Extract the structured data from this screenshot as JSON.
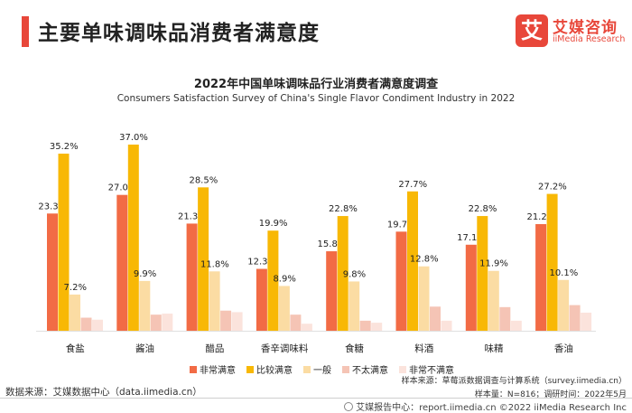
{
  "header": {
    "title": "主要单味调味品消费者满意度"
  },
  "logo": {
    "mark": "艾",
    "name_cn": "艾媒咨询",
    "name_en": "iiMedia Research"
  },
  "chart_data": {
    "type": "bar",
    "title": "2022年中国单味调味品行业消费者满意度调查",
    "subtitle": "Consumers Satisfaction Survey of China's Single Flavor Condiment Industry in 2022",
    "categories": [
      "食盐",
      "酱油",
      "醋品",
      "香辛调味料",
      "食糖",
      "料酒",
      "味精",
      "香油"
    ],
    "series": [
      {
        "name": "非常满意",
        "color": "#f26b45",
        "values": [
          23.3,
          27.0,
          21.3,
          12.3,
          15.8,
          19.7,
          17.1,
          21.2
        ],
        "labels": [
          "23.3%",
          "27.0%",
          "21.3%",
          "12.3%",
          "15.8%",
          "19.7%",
          "17.1%",
          "21.2%"
        ]
      },
      {
        "name": "比较满意",
        "color": "#f8b805",
        "values": [
          35.2,
          37.0,
          28.5,
          19.9,
          22.8,
          27.7,
          22.8,
          27.2
        ],
        "labels": [
          "35.2%",
          "37.0%",
          "28.5%",
          "19.9%",
          "22.8%",
          "27.7%",
          "22.8%",
          "27.2%"
        ]
      },
      {
        "name": "一般",
        "color": "#fbdca3",
        "values": [
          7.2,
          9.9,
          11.8,
          8.9,
          9.8,
          12.8,
          11.9,
          10.1
        ],
        "labels": [
          "7.2%",
          "9.9%",
          "11.8%",
          "8.9%",
          "9.8%",
          "12.8%",
          "11.9%",
          "10.1%"
        ]
      },
      {
        "name": "不太满意",
        "color": "#f5c4b5",
        "values": [
          2.6,
          3.2,
          4.0,
          3.2,
          2.0,
          4.8,
          4.7,
          5.1
        ]
      },
      {
        "name": "非常不满意",
        "color": "#fbe3dc",
        "values": [
          2.2,
          3.4,
          3.7,
          1.4,
          1.6,
          2.0,
          2.0,
          3.6
        ]
      }
    ],
    "ylim": [
      0,
      42
    ],
    "legend_position": "bottom",
    "grid": false
  },
  "footer": {
    "source": "数据来源：艾媒数据中心（data.iimedia.cn）",
    "note_sample_source": "样本来源：草莓派数据调查与计算系统（survey.iimedia.cn）",
    "note_sample_size": "样本量：N=816；调研时间：2022年5月",
    "report_center": "艾媒报告中心：report.iimedia.cn  ©2022  iiMedia Research  Inc"
  }
}
